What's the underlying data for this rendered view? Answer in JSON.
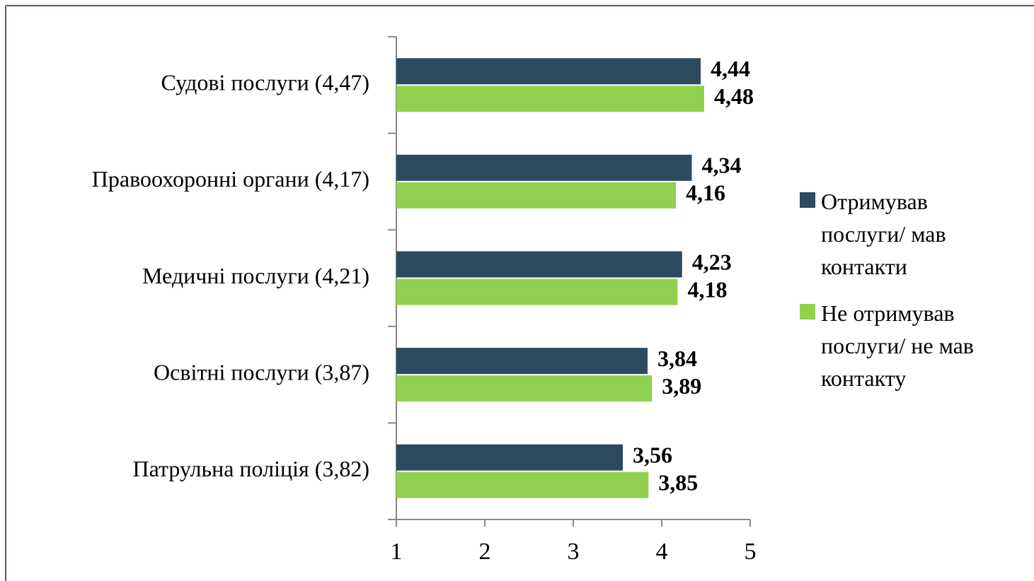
{
  "chart_data": {
    "type": "hbar",
    "categories": [
      "Судові послуги (4,47)",
      "Правоохоронні органи (4,17)",
      "Медичні послуги (4,21)",
      "Освітні послуги (3,87)",
      "Патрульна поліція (3,82)"
    ],
    "series": [
      {
        "name": "Отримував послуги/ мав контакти",
        "color": "#2d4a5e",
        "values": [
          4.44,
          4.34,
          4.23,
          3.84,
          3.56
        ],
        "value_labels": [
          "4,44",
          "4,34",
          "4,23",
          "3,84",
          "3,56"
        ]
      },
      {
        "name": "Не отримував послуги/ не мав контакту",
        "color": "#92d050",
        "values": [
          4.48,
          4.16,
          4.18,
          3.89,
          3.85
        ],
        "value_labels": [
          "4,48",
          "4,16",
          "4,18",
          "3,89",
          "3,85"
        ]
      }
    ],
    "xlim": [
      1,
      5
    ],
    "xticks": [
      1,
      2,
      3,
      4,
      5
    ],
    "legend": "right"
  }
}
